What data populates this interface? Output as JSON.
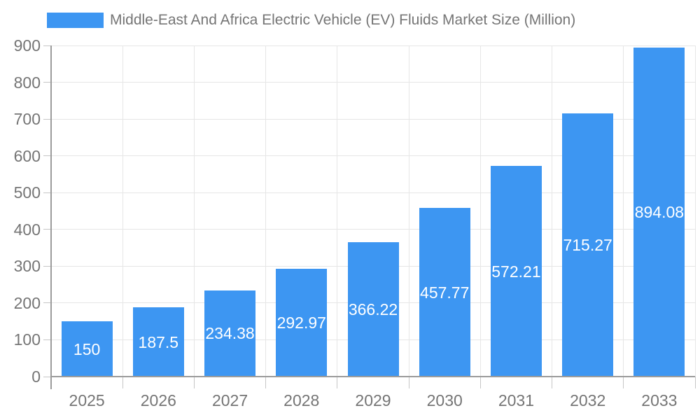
{
  "colors": {
    "bar": "#3D96F2",
    "text": "#757575",
    "grid": "#E6E6E6",
    "axis": "#9B9B9B",
    "tick": "#C6C6C6",
    "value_label": "#FFFFFF",
    "background": "#FFFFFF"
  },
  "legend": {
    "swatch": "legend-color-swatch"
  },
  "chart_data": {
    "type": "bar",
    "title": "Middle-East And Africa Electric Vehicle (EV) Fluids Market Size (Million)",
    "categories": [
      "2025",
      "2026",
      "2027",
      "2028",
      "2029",
      "2030",
      "2031",
      "2032",
      "2033"
    ],
    "values": [
      150,
      187.5,
      234.38,
      292.97,
      366.22,
      457.77,
      572.21,
      715.27,
      894.08
    ],
    "value_labels": [
      "150",
      "187.5",
      "234.38",
      "292.97",
      "366.22",
      "457.77",
      "572.21",
      "715.27",
      "894.08"
    ],
    "series": [
      {
        "name": "Middle-East And Africa Electric Vehicle (EV) Fluids Market Size (Million)",
        "values": [
          150,
          187.5,
          234.38,
          292.97,
          366.22,
          457.77,
          572.21,
          715.27,
          894.08
        ]
      }
    ],
    "xlabel": "",
    "ylabel": "",
    "ylim": [
      0,
      900
    ],
    "yticks": [
      0,
      100,
      200,
      300,
      400,
      500,
      600,
      700,
      800,
      900
    ],
    "ytick_labels": [
      "0",
      "100",
      "200",
      "300",
      "400",
      "500",
      "600",
      "700",
      "800",
      "900"
    ],
    "grid": true,
    "legend_position": "top"
  }
}
